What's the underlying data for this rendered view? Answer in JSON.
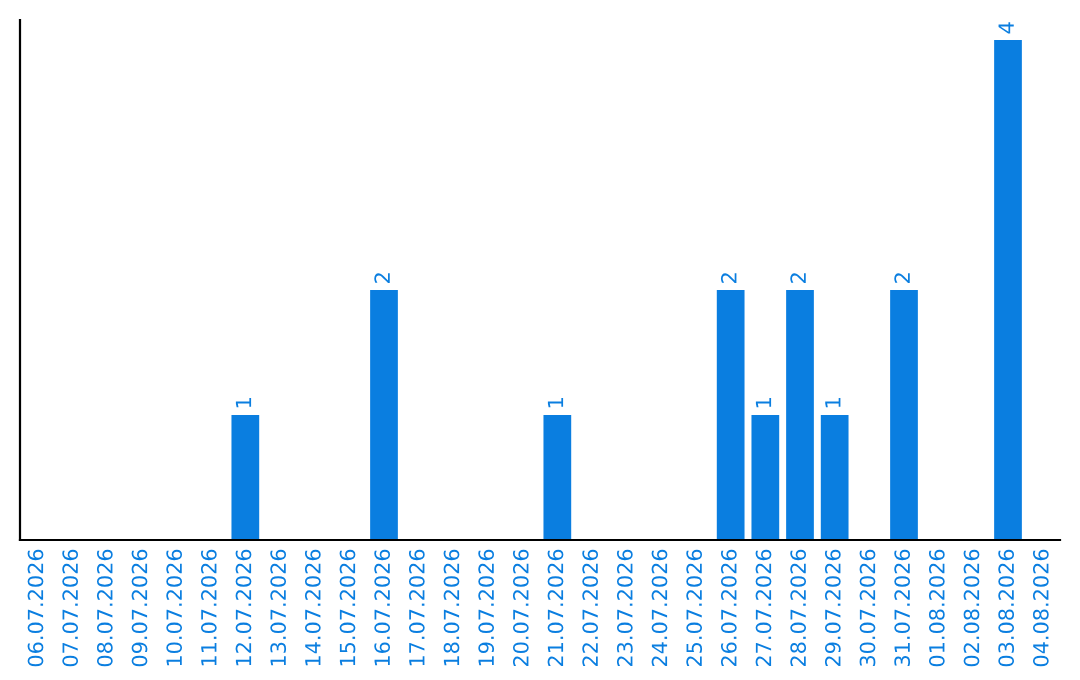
{
  "chart_data": {
    "type": "bar",
    "categories": [
      "06.07.2026",
      "07.07.2026",
      "08.07.2026",
      "09.07.2026",
      "10.07.2026",
      "11.07.2026",
      "12.07.2026",
      "13.07.2026",
      "14.07.2026",
      "15.07.2026",
      "16.07.2026",
      "17.07.2026",
      "18.07.2026",
      "19.07.2026",
      "20.07.2026",
      "21.07.2026",
      "22.07.2026",
      "23.07.2026",
      "24.07.2026",
      "25.07.2026",
      "26.07.2026",
      "27.07.2026",
      "28.07.2026",
      "29.07.2026",
      "30.07.2026",
      "31.07.2026",
      "01.08.2026",
      "02.08.2026",
      "03.08.2026",
      "04.08.2026"
    ],
    "values": [
      0,
      0,
      0,
      0,
      0,
      0,
      1,
      0,
      0,
      0,
      2,
      0,
      0,
      0,
      0,
      1,
      0,
      0,
      0,
      0,
      2,
      1,
      2,
      1,
      0,
      2,
      0,
      0,
      4,
      0
    ],
    "value_labels": [
      null,
      null,
      null,
      null,
      null,
      null,
      "1",
      null,
      null,
      null,
      "2",
      null,
      null,
      null,
      null,
      "1",
      null,
      null,
      null,
      null,
      "2",
      "1",
      "2",
      "1",
      null,
      "2",
      null,
      null,
      "4",
      null
    ],
    "color": "#0a7ee0",
    "ylim": [
      0,
      4.16
    ],
    "tick_labels": "x",
    "grid": false
  }
}
